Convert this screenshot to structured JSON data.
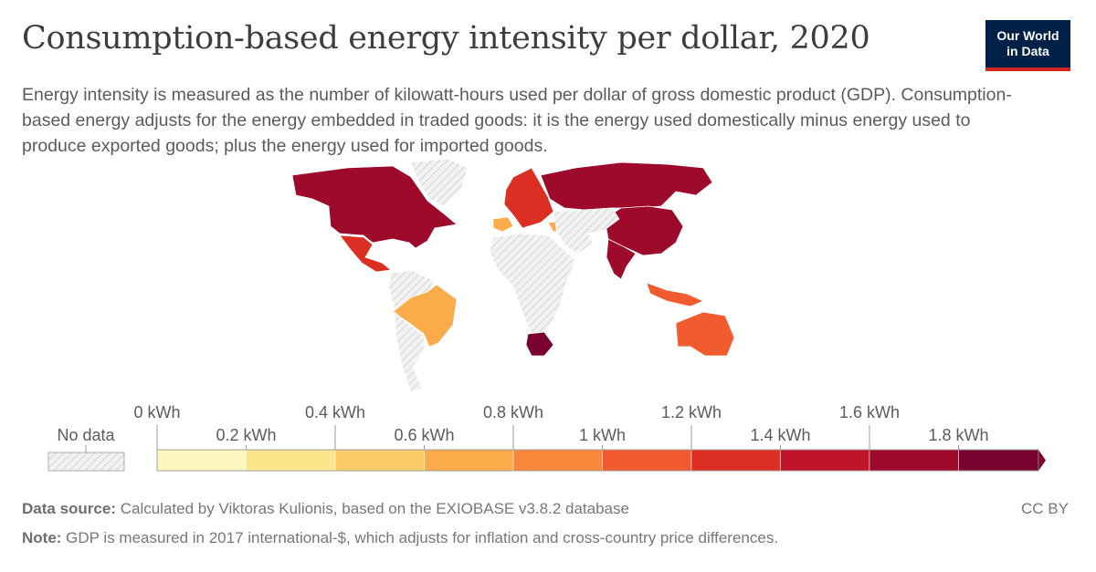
{
  "header": {
    "title": "Consumption-based energy intensity per dollar, 2020",
    "subtitle": "Energy intensity is measured as the number of kilowatt-hours used per dollar of gross domestic product (GDP). Consumption-based energy adjusts for the energy embedded in traded goods: it is the energy used domestically minus energy used to produce exported goods; plus the energy used for imported goods.",
    "logo_line1": "Our World",
    "logo_line2": "in Data"
  },
  "legend": {
    "no_data_label": "No data",
    "top_labels": [
      "0 kWh",
      "0.4 kWh",
      "0.8 kWh",
      "1.2 kWh",
      "1.6 kWh"
    ],
    "bottom_labels": [
      "0.2 kWh",
      "0.6 kWh",
      "1 kWh",
      "1.4 kWh",
      "1.8 kWh"
    ],
    "bin_colors": [
      "#fff6bf",
      "#fde58c",
      "#fdcc6a",
      "#fcab4b",
      "#f9883a",
      "#f25b2f",
      "#dc2f24",
      "#c0142a",
      "#9e0a2c",
      "#7a0230"
    ],
    "no_data_color": "#d9d9d9"
  },
  "map": {
    "countries": [
      {
        "name": "North America",
        "value": 1.9,
        "color": "#9e0a2c"
      },
      {
        "name": "Greenland",
        "value": null,
        "color": "hatch"
      },
      {
        "name": "Mexico",
        "value": 1.3,
        "color": "#dc2f24"
      },
      {
        "name": "South America (north)",
        "value": null,
        "color": "hatch"
      },
      {
        "name": "Brazil",
        "value": 0.7,
        "color": "#fcab4b"
      },
      {
        "name": "Southern cone",
        "value": null,
        "color": "hatch"
      },
      {
        "name": "Western Europe",
        "value": 1.3,
        "color": "#dc2f24"
      },
      {
        "name": "Spain",
        "value": 0.7,
        "color": "#fcab4b"
      },
      {
        "name": "Turkey",
        "value": 0.7,
        "color": "#fcab4b"
      },
      {
        "name": "Russia",
        "value": 1.9,
        "color": "#9e0a2c"
      },
      {
        "name": "China",
        "value": 1.9,
        "color": "#9e0a2c"
      },
      {
        "name": "India",
        "value": 1.9,
        "color": "#9e0a2c"
      },
      {
        "name": "Africa",
        "value": null,
        "color": "hatch"
      },
      {
        "name": "South Africa",
        "value": 2.0,
        "color": "#7a0230"
      },
      {
        "name": "Indonesia",
        "value": 1.1,
        "color": "#f25b2f"
      },
      {
        "name": "Australia",
        "value": 1.1,
        "color": "#f25b2f"
      },
      {
        "name": "Middle East & Central Asia",
        "value": null,
        "color": "hatch"
      }
    ]
  },
  "footer": {
    "source_label": "Data source:",
    "source_text": " Calculated by Viktoras Kulionis, based on the EXIOBASE v3.8.2 database",
    "note_label": "Note:",
    "note_text": " GDP is measured in 2017 international-$, which adjusts for inflation and cross-country price differences.",
    "license": "CC BY"
  }
}
